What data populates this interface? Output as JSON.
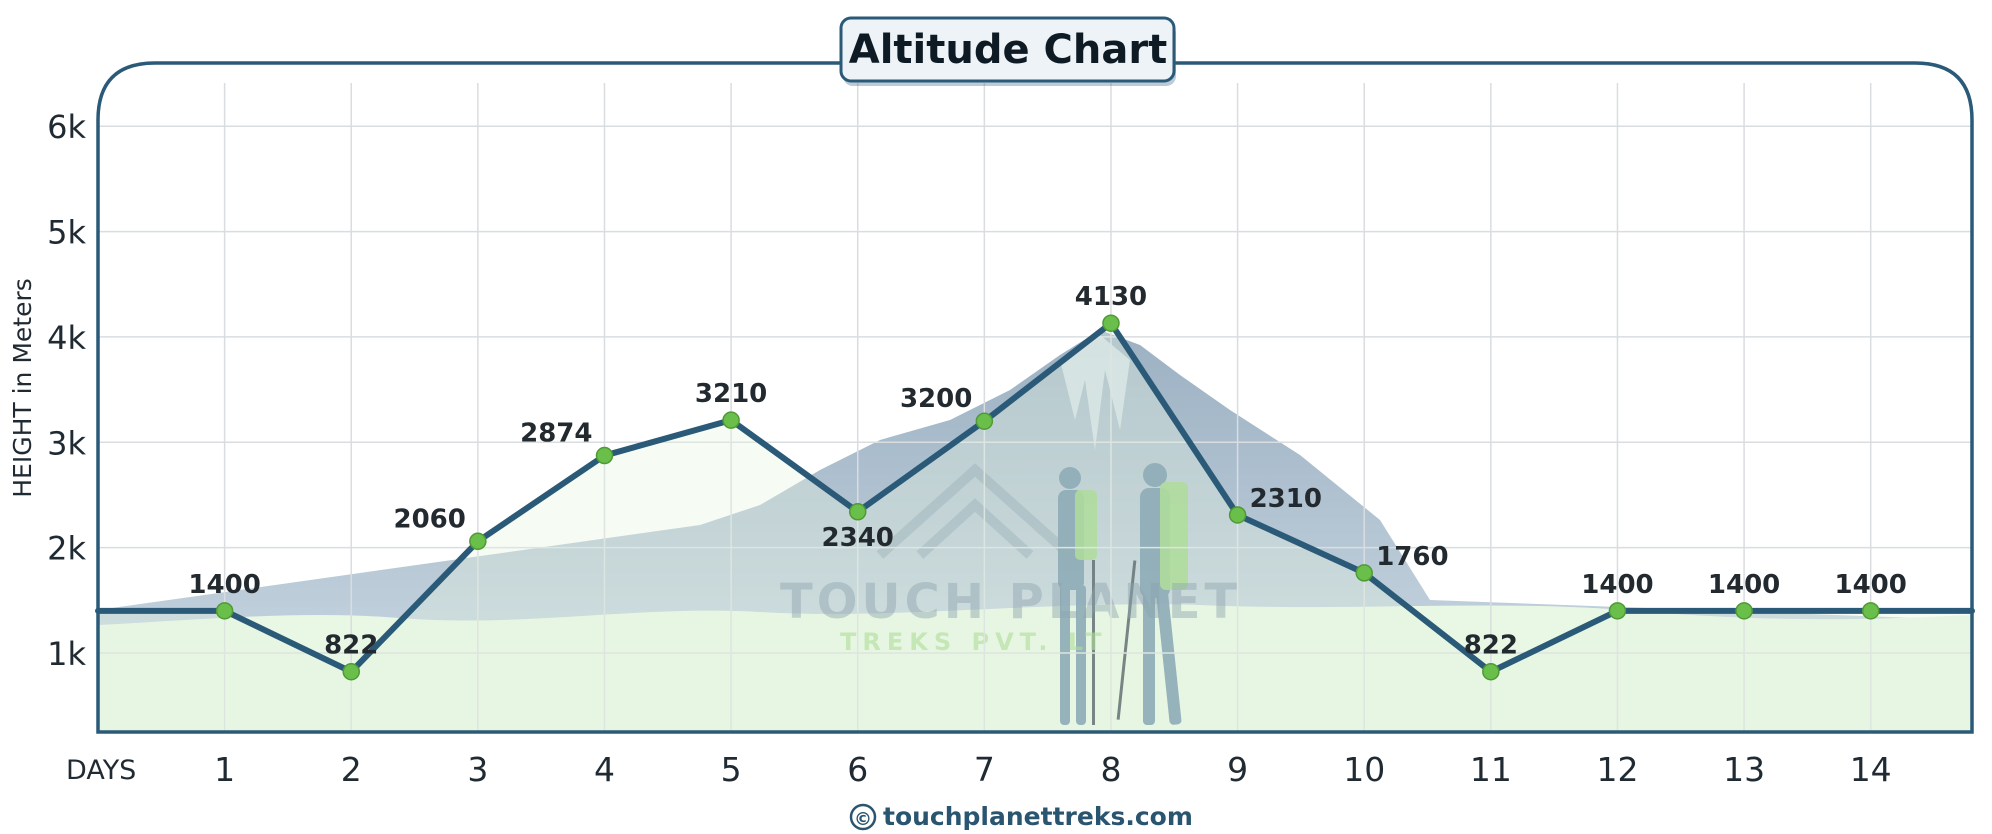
{
  "chart_data": {
    "type": "line",
    "title": "Altitude Chart",
    "xlabel": "DAYS",
    "ylabel": "HEIGHT in Meters",
    "x": [
      1,
      2,
      3,
      4,
      5,
      6,
      7,
      8,
      9,
      10,
      11,
      12,
      13,
      14
    ],
    "x_tick_labels": [
      "1",
      "2",
      "3",
      "4",
      "5",
      "6",
      "7",
      "8",
      "9",
      "10",
      "11",
      "12",
      "13",
      "14"
    ],
    "values": [
      1400,
      822,
      2060,
      2874,
      3210,
      2340,
      3200,
      4130,
      2310,
      1760,
      822,
      1400,
      1400,
      1400
    ],
    "data_labels": [
      "1400",
      "822",
      "2060",
      "2874",
      "3210",
      "2340",
      "3200",
      "4130",
      "2310",
      "1760",
      "822",
      "1400",
      "1400",
      "1400"
    ],
    "y_ticks": [
      1000,
      2000,
      3000,
      4000,
      5000,
      6000
    ],
    "y_tick_labels": [
      "1k",
      "2k",
      "3k",
      "4k",
      "5k",
      "6k"
    ],
    "ylim": [
      250,
      6600
    ],
    "xlim": [
      0,
      14.8
    ],
    "grid": true,
    "colors": {
      "line": "#2a5a78",
      "marker": "#6abf4b",
      "frame": "#2a5a78",
      "ground_fill": "#e9f7e5",
      "mountain_fill": "#b8c9d6"
    }
  },
  "watermark": {
    "main": "TOUCH PLANET",
    "sub": "TREKS PVT. LT"
  },
  "footer": {
    "copyright_symbol": "©",
    "site": "touchplanettreks.com"
  }
}
